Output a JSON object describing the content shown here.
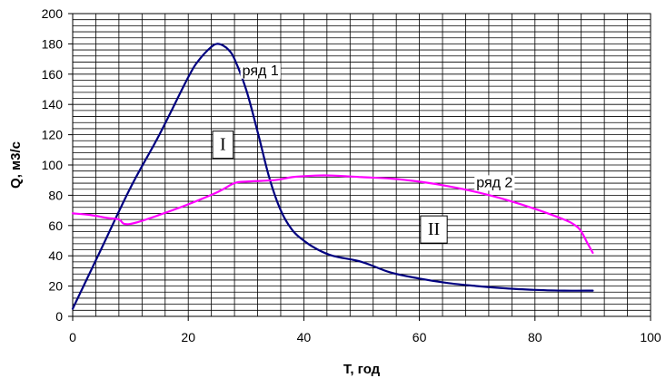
{
  "chart_data": {
    "type": "line",
    "title": "",
    "xlabel": "T, год",
    "ylabel": "Q, м3/с",
    "xlim": [
      0,
      100
    ],
    "ylim": [
      0,
      200
    ],
    "x_ticks": [
      0,
      20,
      40,
      60,
      80,
      100
    ],
    "y_ticks": [
      0,
      20,
      40,
      60,
      80,
      100,
      120,
      140,
      160,
      180,
      200
    ],
    "grid": {
      "x_minor_step": 4,
      "y_minor_step": 4,
      "color": "#000000"
    },
    "series": [
      {
        "name": "ряд 1",
        "color": "#000080",
        "x": [
          0,
          5,
          10,
          15,
          20,
          22,
          24,
          25,
          26,
          27,
          28,
          30,
          32,
          34,
          36,
          38,
          40,
          42,
          45,
          50,
          55,
          60,
          65,
          70,
          75,
          80,
          85,
          90
        ],
        "y": [
          5,
          45,
          85,
          120,
          158,
          170,
          178,
          180,
          179,
          176,
          170,
          150,
          122,
          92,
          70,
          57,
          50,
          45,
          40,
          36,
          29,
          25,
          22,
          20,
          18.5,
          17.5,
          17,
          17
        ]
      },
      {
        "name": "ряд 2",
        "color": "#ff00ff",
        "x": [
          0,
          3,
          6,
          8,
          9,
          11,
          15,
          20,
          25,
          28,
          30,
          35,
          38,
          42,
          45,
          50,
          55,
          60,
          65,
          70,
          75,
          80,
          85,
          87,
          88,
          89,
          90
        ],
        "y": [
          68,
          67,
          65,
          64,
          61,
          62,
          67,
          74,
          82,
          88,
          89,
          90,
          92,
          93,
          93,
          92,
          91,
          89,
          86,
          82,
          77,
          71,
          64,
          60,
          56,
          49,
          42
        ]
      }
    ],
    "annotations": [
      {
        "text": "ряд 1",
        "x": 32.5,
        "y": 163,
        "kind": "series-label"
      },
      {
        "text": "ряд 2",
        "x": 73,
        "y": 89,
        "kind": "series-label"
      },
      {
        "text": "I",
        "x": 26,
        "y": 114,
        "kind": "boxed"
      },
      {
        "text": "II",
        "x": 62.5,
        "y": 58,
        "kind": "boxed"
      }
    ]
  }
}
